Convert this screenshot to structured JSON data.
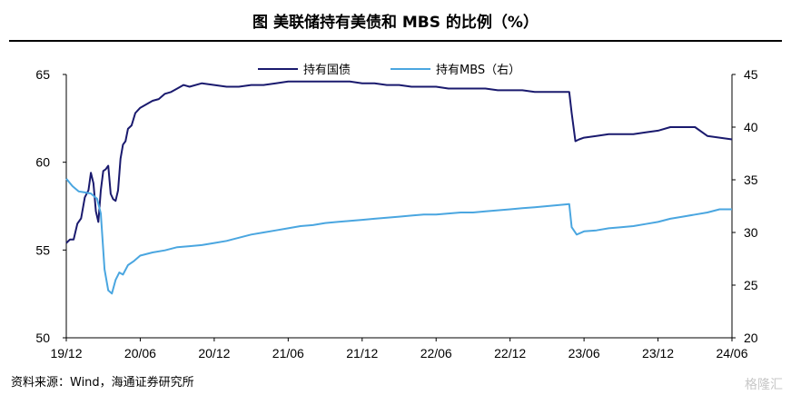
{
  "title": "图  美联储持有美债和 MBS 的比例（%）",
  "source": "资料来源：Wind，海通证券研究所",
  "watermark": "格隆汇",
  "chart_data": {
    "type": "line",
    "x_tick_labels": [
      "19/12",
      "20/06",
      "20/12",
      "21/06",
      "21/12",
      "22/06",
      "22/12",
      "23/06",
      "23/12",
      "24/06"
    ],
    "y_left": {
      "ticks": [
        50,
        55,
        60,
        65
      ],
      "range": [
        50,
        65
      ]
    },
    "y_right": {
      "ticks": [
        20,
        25,
        30,
        35,
        40,
        45
      ],
      "range": [
        20,
        45
      ]
    },
    "legend_position": "top-center",
    "x_months_note": "x values are months since 2019-12",
    "series": [
      {
        "name": "持有国债",
        "axis": "left",
        "color": "#1a1a6e",
        "x": [
          0,
          0.3,
          0.6,
          0.9,
          1.2,
          1.5,
          1.8,
          2.0,
          2.2,
          2.4,
          2.6,
          2.8,
          3.0,
          3.2,
          3.4,
          3.6,
          3.8,
          4.0,
          4.2,
          4.4,
          4.6,
          4.8,
          5.0,
          5.3,
          5.6,
          6.0,
          6.5,
          7.0,
          7.5,
          8.0,
          8.5,
          9.0,
          9.5,
          10.0,
          11.0,
          12.0,
          13.0,
          14.0,
          15.0,
          16.0,
          17.0,
          18.0,
          19.0,
          20.0,
          21.0,
          22.0,
          23.0,
          24.0,
          25.0,
          26.0,
          27.0,
          28.0,
          29.0,
          30.0,
          31.0,
          32.0,
          33.0,
          34.0,
          35.0,
          36.0,
          37.0,
          38.0,
          39.0,
          40.0,
          40.8,
          41.0,
          41.3,
          41.6,
          42.0,
          43.0,
          44.0,
          45.0,
          46.0,
          47.0,
          48.0,
          49.0,
          50.0,
          51.0,
          52.0,
          53.0,
          54.0
        ],
        "y": [
          55.4,
          55.6,
          55.6,
          56.5,
          56.8,
          58.0,
          58.4,
          59.4,
          58.8,
          57.2,
          56.6,
          58.4,
          59.5,
          59.6,
          59.8,
          58.2,
          57.9,
          57.8,
          58.4,
          60.2,
          61.0,
          61.2,
          61.9,
          62.1,
          62.8,
          63.1,
          63.3,
          63.5,
          63.6,
          63.9,
          64.0,
          64.2,
          64.4,
          64.3,
          64.5,
          64.4,
          64.3,
          64.3,
          64.4,
          64.4,
          64.5,
          64.6,
          64.6,
          64.6,
          64.6,
          64.6,
          64.6,
          64.5,
          64.5,
          64.4,
          64.4,
          64.3,
          64.3,
          64.3,
          64.2,
          64.2,
          64.2,
          64.2,
          64.1,
          64.1,
          64.1,
          64.0,
          64.0,
          64.0,
          64.0,
          62.8,
          61.2,
          61.3,
          61.4,
          61.5,
          61.6,
          61.6,
          61.6,
          61.7,
          61.8,
          62.0,
          62.0,
          62.0,
          61.5,
          61.4,
          61.3
        ]
      },
      {
        "name": "持有MBS（右）",
        "axis": "right",
        "color": "#4aa6e0",
        "x": [
          0,
          0.5,
          1.0,
          1.5,
          2.0,
          2.5,
          2.8,
          3.1,
          3.4,
          3.7,
          4.0,
          4.3,
          4.6,
          5.0,
          5.5,
          6.0,
          7.0,
          8.0,
          9.0,
          10.0,
          11.0,
          12.0,
          13.0,
          14.0,
          15.0,
          16.0,
          17.0,
          18.0,
          19.0,
          20.0,
          21.0,
          22.0,
          23.0,
          24.0,
          25.0,
          26.0,
          27.0,
          28.0,
          29.0,
          30.0,
          31.0,
          32.0,
          33.0,
          34.0,
          35.0,
          36.0,
          37.0,
          38.0,
          39.0,
          40.0,
          40.8,
          41.0,
          41.4,
          42.0,
          43.0,
          44.0,
          45.0,
          46.0,
          47.0,
          48.0,
          49.0,
          50.0,
          51.0,
          52.0,
          53.0,
          54.0
        ],
        "y": [
          35.1,
          34.4,
          33.9,
          33.8,
          33.7,
          33.2,
          31.8,
          26.5,
          24.5,
          24.2,
          25.5,
          26.2,
          26.0,
          26.9,
          27.3,
          27.8,
          28.1,
          28.3,
          28.6,
          28.7,
          28.8,
          29.0,
          29.2,
          29.5,
          29.8,
          30.0,
          30.2,
          30.4,
          30.6,
          30.7,
          30.9,
          31.0,
          31.1,
          31.2,
          31.3,
          31.4,
          31.5,
          31.6,
          31.7,
          31.7,
          31.8,
          31.9,
          31.9,
          32.0,
          32.1,
          32.2,
          32.3,
          32.4,
          32.5,
          32.6,
          32.7,
          30.5,
          29.8,
          30.1,
          30.2,
          30.4,
          30.5,
          30.6,
          30.8,
          31.0,
          31.3,
          31.5,
          31.7,
          31.9,
          32.2,
          32.2
        ]
      }
    ]
  }
}
